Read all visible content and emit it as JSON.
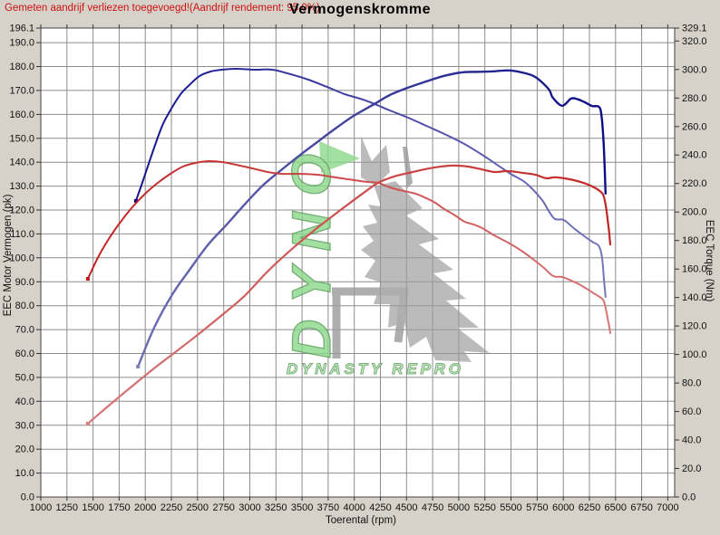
{
  "header": {
    "warning": "Gemeten aandrijf verliezen toegevoegd!(Aandrijf rendement: 95.0%)",
    "title": "Vermogenskromme"
  },
  "watermark": {
    "vertical_text": "DYNO",
    "subtitle": "DYNASTY REPRO"
  },
  "colors": {
    "background": "#d6d2ca",
    "plot_background": "#ffffff",
    "grid": "#8c8c8c",
    "plot_border": "#444444",
    "tick_text": "#111111",
    "warning_text": "#cc1111",
    "title_text": "#000000",
    "watermark_green": "#8cd98c",
    "watermark_green_stroke": "#5a9e5a",
    "watermark_gray": "#9b9b9b"
  },
  "chart_data": {
    "type": "line",
    "title": "Vermogenskromme",
    "xlabel": "Toerental (rpm)",
    "ylabel_left": "EEC Motor Vermogen (pk)",
    "ylabel_right": "EEC Torque (Nm)",
    "grid": true,
    "legend": false,
    "x_range": [
      1000,
      7066
    ],
    "left_range": [
      0,
      196.1
    ],
    "right_range": [
      0,
      329.1
    ],
    "x_ticks": [
      1000,
      1250,
      1500,
      1750,
      2000,
      2250,
      2500,
      2750,
      3000,
      3250,
      3500,
      3750,
      4000,
      4250,
      4500,
      4750,
      5000,
      5250,
      5500,
      5750,
      6000,
      6250,
      6500,
      6750,
      7000
    ],
    "left_ticks": [
      196.1,
      190,
      180,
      170,
      160,
      150,
      140,
      130,
      120,
      110,
      100,
      90,
      80,
      70,
      60,
      50,
      40,
      30,
      20,
      10,
      0
    ],
    "right_ticks": [
      329.1,
      320,
      300,
      280,
      260,
      240,
      220,
      200,
      180,
      160,
      140,
      120,
      100,
      80,
      60,
      40,
      20,
      0
    ],
    "series": [
      {
        "name": "torque-curve-tuned",
        "axis": "right",
        "unit": "Nm",
        "color_start": "#000088",
        "color_end": "#8585c2",
        "width": 2.0,
        "points": [
          [
            1910,
            207.8
          ],
          [
            1965,
            219.2
          ],
          [
            2035,
            234.5
          ],
          [
            2100,
            248.4
          ],
          [
            2170,
            261.8
          ],
          [
            2260,
            273.9
          ],
          [
            2345,
            283.4
          ],
          [
            2430,
            289.7
          ],
          [
            2520,
            295.5
          ],
          [
            2625,
            298.6
          ],
          [
            2735,
            299.9
          ],
          [
            2865,
            300.5
          ],
          [
            3040,
            299.9
          ],
          [
            3215,
            299.9
          ],
          [
            3385,
            296.8
          ],
          [
            3560,
            292.9
          ],
          [
            3735,
            287.9
          ],
          [
            3905,
            282.8
          ],
          [
            4080,
            279.0
          ],
          [
            4195,
            275.8
          ],
          [
            4340,
            271.3
          ],
          [
            4515,
            266.2
          ],
          [
            4690,
            260.5
          ],
          [
            4860,
            254.8
          ],
          [
            5035,
            248.5
          ],
          [
            5210,
            240.8
          ],
          [
            5340,
            234.5
          ],
          [
            5495,
            226.8
          ],
          [
            5640,
            220.5
          ],
          [
            5790,
            209.1
          ],
          [
            5860,
            200.8
          ],
          [
            5920,
            195.1
          ],
          [
            6005,
            194.4
          ],
          [
            6100,
            188.7
          ],
          [
            6190,
            183.6
          ],
          [
            6275,
            179.2
          ],
          [
            6335,
            176.6
          ],
          [
            6365,
            170.9
          ],
          [
            6380,
            161.4
          ],
          [
            6390,
            151.9
          ],
          [
            6400,
            144.2
          ],
          [
            6405,
            140.4
          ]
        ]
      },
      {
        "name": "power-curve-tuned",
        "axis": "left",
        "unit": "pk",
        "color_start": "#8080bb",
        "color_end": "#000080",
        "width": 2.4,
        "points": [
          [
            1930,
            54.5
          ],
          [
            2085,
            70.8
          ],
          [
            2260,
            84.8
          ],
          [
            2430,
            95.4
          ],
          [
            2605,
            105.7
          ],
          [
            2780,
            114.0
          ],
          [
            2950,
            122.3
          ],
          [
            3125,
            130.3
          ],
          [
            3300,
            136.7
          ],
          [
            3475,
            142.8
          ],
          [
            3645,
            148.4
          ],
          [
            3820,
            154.1
          ],
          [
            3995,
            159.4
          ],
          [
            4195,
            164.4
          ],
          [
            4340,
            168.1
          ],
          [
            4515,
            171.2
          ],
          [
            4690,
            173.8
          ],
          [
            4860,
            176.1
          ],
          [
            5035,
            177.6
          ],
          [
            5210,
            177.8
          ],
          [
            5340,
            178.0
          ],
          [
            5470,
            178.4
          ],
          [
            5600,
            177.6
          ],
          [
            5730,
            175.7
          ],
          [
            5860,
            170.6
          ],
          [
            5900,
            167.0
          ],
          [
            5990,
            163.6
          ],
          [
            6075,
            166.6
          ],
          [
            6140,
            166.3
          ],
          [
            6205,
            165.1
          ],
          [
            6275,
            163.5
          ],
          [
            6340,
            163.2
          ],
          [
            6365,
            159.8
          ],
          [
            6385,
            149.0
          ],
          [
            6395,
            139.0
          ],
          [
            6405,
            126.9
          ]
        ]
      },
      {
        "name": "torque-curve-original",
        "axis": "right",
        "unit": "Nm",
        "color_start": "#c01a1a",
        "color_end": "#d98080",
        "width": 2.0,
        "points": [
          [
            1450,
            153.1
          ],
          [
            1545,
            167.8
          ],
          [
            1650,
            181.1
          ],
          [
            1765,
            193.2
          ],
          [
            1875,
            203.3
          ],
          [
            2000,
            212.9
          ],
          [
            2120,
            220.5
          ],
          [
            2240,
            226.8
          ],
          [
            2360,
            231.9
          ],
          [
            2485,
            234.5
          ],
          [
            2605,
            235.7
          ],
          [
            2735,
            235.1
          ],
          [
            2865,
            233.2
          ],
          [
            3020,
            230.7
          ],
          [
            3170,
            228.1
          ],
          [
            3300,
            226.8
          ],
          [
            3475,
            226.8
          ],
          [
            3645,
            226.2
          ],
          [
            3820,
            224.3
          ],
          [
            3995,
            222.4
          ],
          [
            4125,
            221.1
          ],
          [
            4230,
            220.5
          ],
          [
            4340,
            217.3
          ],
          [
            4470,
            214.8
          ],
          [
            4585,
            212.9
          ],
          [
            4690,
            209.7
          ],
          [
            4775,
            206.5
          ],
          [
            4860,
            202.1
          ],
          [
            4965,
            197.6
          ],
          [
            5055,
            193.2
          ],
          [
            5140,
            191.3
          ],
          [
            5225,
            188.7
          ],
          [
            5340,
            183.6
          ],
          [
            5470,
            178.6
          ],
          [
            5600,
            172.8
          ],
          [
            5730,
            165.8
          ],
          [
            5815,
            160.8
          ],
          [
            5905,
            155.0
          ],
          [
            5990,
            154.4
          ],
          [
            6075,
            151.9
          ],
          [
            6165,
            148.7
          ],
          [
            6250,
            144.9
          ],
          [
            6320,
            141.7
          ],
          [
            6380,
            138.5
          ],
          [
            6405,
            132.8
          ],
          [
            6425,
            125.2
          ],
          [
            6440,
            119.5
          ],
          [
            6450,
            115.0
          ]
        ]
      },
      {
        "name": "power-curve-original",
        "axis": "left",
        "unit": "pk",
        "color_start": "#d98080",
        "color_end": "#c01a1a",
        "width": 2.2,
        "points": [
          [
            1450,
            30.7
          ],
          [
            1650,
            38.2
          ],
          [
            1870,
            46.2
          ],
          [
            2085,
            53.8
          ],
          [
            2300,
            61.0
          ],
          [
            2520,
            68.5
          ],
          [
            2735,
            76.1
          ],
          [
            2950,
            84.1
          ],
          [
            3170,
            94.3
          ],
          [
            3385,
            103.0
          ],
          [
            3645,
            112.5
          ],
          [
            3905,
            121.2
          ],
          [
            4080,
            126.9
          ],
          [
            4230,
            131.4
          ],
          [
            4385,
            134.1
          ],
          [
            4560,
            135.9
          ],
          [
            4715,
            137.4
          ],
          [
            4835,
            138.2
          ],
          [
            4950,
            138.6
          ],
          [
            5080,
            138.2
          ],
          [
            5210,
            137.1
          ],
          [
            5340,
            135.9
          ],
          [
            5470,
            136.3
          ],
          [
            5600,
            135.6
          ],
          [
            5730,
            134.8
          ],
          [
            5835,
            133.3
          ],
          [
            5920,
            133.7
          ],
          [
            6005,
            133.3
          ],
          [
            6100,
            132.5
          ],
          [
            6190,
            131.4
          ],
          [
            6275,
            129.9
          ],
          [
            6335,
            128.4
          ],
          [
            6380,
            126.5
          ],
          [
            6405,
            122.3
          ],
          [
            6425,
            115.9
          ],
          [
            6440,
            110.2
          ],
          [
            6450,
            105.6
          ]
        ]
      }
    ]
  }
}
